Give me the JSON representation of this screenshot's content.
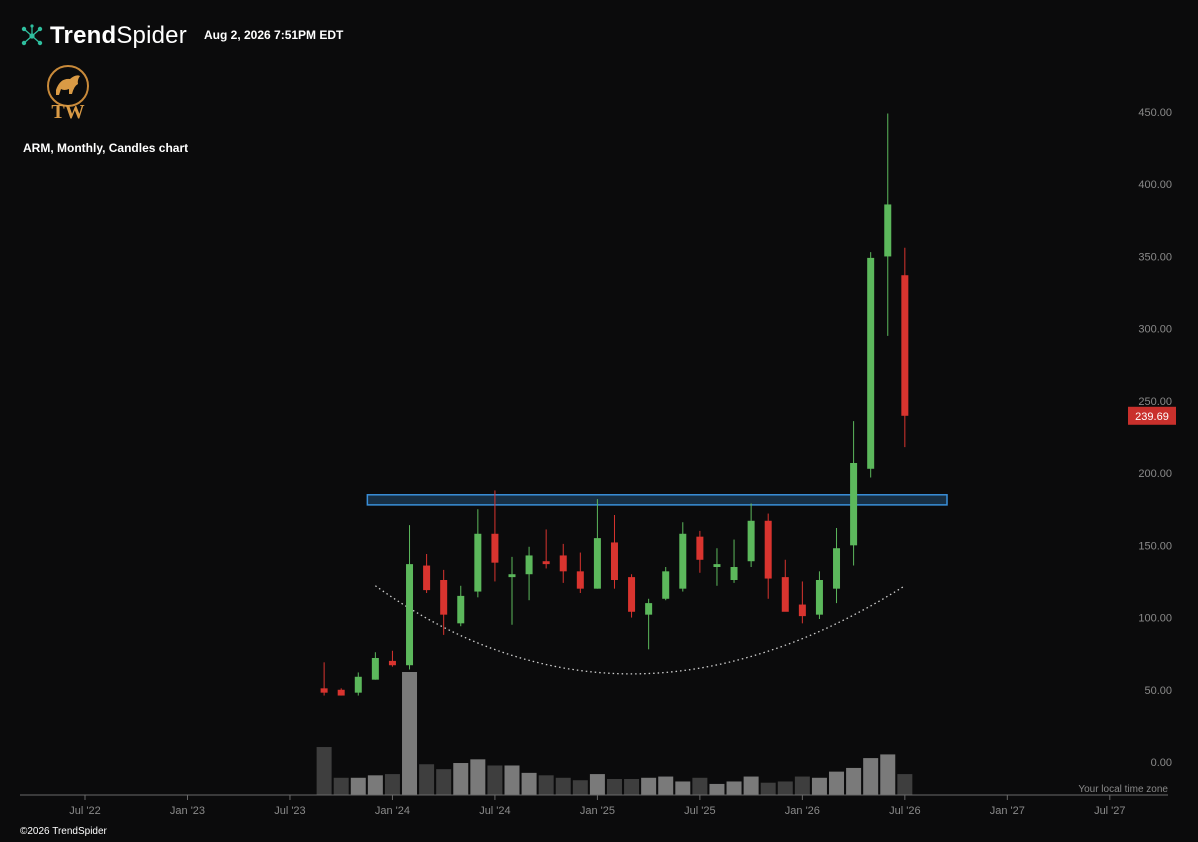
{
  "header": {
    "brand_bold": "Trend",
    "brand_light": "Spider",
    "timestamp": "Aug 2, 2026 7:51PM EDT",
    "logo_icon": "tw-bull-logo-icon",
    "brand_icon": "trendspider-nodes-icon",
    "logo_text": "TW"
  },
  "chart_title": "ARM, Monthly, Candles chart",
  "footer": {
    "copyright": "©2026 TrendSpider",
    "timezone_label": "Your local time zone"
  },
  "colors": {
    "background": "#0b0b0c",
    "up": "#5cb85c",
    "down": "#d9342f",
    "resistance": "#3a8fd9",
    "last_price_bg": "#c9302c",
    "volume_light": "#7a7a7a",
    "volume_dark": "#3e3e3e",
    "axis_text": "#8a8a8a"
  },
  "chart_data": {
    "type": "candlestick",
    "symbol": "ARM",
    "interval": "Monthly",
    "y_ticks": [
      "450.00",
      "400.00",
      "350.00",
      "300.00",
      "250.00",
      "200.00",
      "150.00",
      "100.00",
      "50.00",
      "0.00"
    ],
    "y_tick_values": [
      450,
      400,
      350,
      300,
      250,
      200,
      150,
      100,
      50,
      0
    ],
    "ylim": [
      0,
      450
    ],
    "x_ticks": [
      "Jul '22",
      "Jan '23",
      "Jul '23",
      "Jan '24",
      "Jul '24",
      "Jan '25",
      "Jul '25",
      "Jan '26",
      "Jul '26",
      "Jan '27",
      "Jul '27"
    ],
    "x_range_months": [
      "2022-07",
      "2027-07"
    ],
    "last_price": 239.69,
    "last_price_label": "239.69",
    "candles": [
      {
        "date": "2023-09",
        "open": 51.0,
        "high": 69.0,
        "low": 46.0,
        "close": 48.0
      },
      {
        "date": "2023-10",
        "open": 50.0,
        "high": 51.0,
        "low": 46.0,
        "close": 46.0
      },
      {
        "date": "2023-11",
        "open": 48.0,
        "high": 62.0,
        "low": 46.0,
        "close": 59.0
      },
      {
        "date": "2023-12",
        "open": 57.0,
        "high": 76.0,
        "low": 57.0,
        "close": 72.0
      },
      {
        "date": "2024-01",
        "open": 70.0,
        "high": 77.0,
        "low": 66.0,
        "close": 67.0
      },
      {
        "date": "2024-02",
        "open": 67.0,
        "high": 164.0,
        "low": 64.0,
        "close": 137.0
      },
      {
        "date": "2024-03",
        "open": 136.0,
        "high": 144.0,
        "low": 117.0,
        "close": 119.0
      },
      {
        "date": "2024-04",
        "open": 126.0,
        "high": 133.0,
        "low": 88.0,
        "close": 102.0
      },
      {
        "date": "2024-05",
        "open": 96.0,
        "high": 122.0,
        "low": 94.0,
        "close": 115.0
      },
      {
        "date": "2024-06",
        "open": 118.0,
        "high": 175.0,
        "low": 114.0,
        "close": 158.0
      },
      {
        "date": "2024-07",
        "open": 158.0,
        "high": 188.0,
        "low": 125.0,
        "close": 138.0
      },
      {
        "date": "2024-08",
        "open": 128.0,
        "high": 142.0,
        "low": 95.0,
        "close": 130.0
      },
      {
        "date": "2024-09",
        "open": 130.0,
        "high": 149.0,
        "low": 112.0,
        "close": 143.0
      },
      {
        "date": "2024-10",
        "open": 139.0,
        "high": 161.0,
        "low": 134.0,
        "close": 137.0
      },
      {
        "date": "2024-11",
        "open": 143.0,
        "high": 151.0,
        "low": 124.0,
        "close": 132.0
      },
      {
        "date": "2024-12",
        "open": 132.0,
        "high": 145.0,
        "low": 117.0,
        "close": 120.0
      },
      {
        "date": "2025-01",
        "open": 120.0,
        "high": 182.0,
        "low": 120.0,
        "close": 155.0
      },
      {
        "date": "2025-02",
        "open": 152.0,
        "high": 171.0,
        "low": 120.0,
        "close": 126.0
      },
      {
        "date": "2025-03",
        "open": 128.0,
        "high": 130.0,
        "low": 100.0,
        "close": 104.0
      },
      {
        "date": "2025-04",
        "open": 102.0,
        "high": 113.0,
        "low": 78.0,
        "close": 110.0
      },
      {
        "date": "2025-05",
        "open": 113.0,
        "high": 135.0,
        "low": 112.0,
        "close": 132.0
      },
      {
        "date": "2025-06",
        "open": 120.0,
        "high": 166.0,
        "low": 118.0,
        "close": 158.0
      },
      {
        "date": "2025-07",
        "open": 156.0,
        "high": 160.0,
        "low": 131.0,
        "close": 140.0
      },
      {
        "date": "2025-08",
        "open": 135.0,
        "high": 148.0,
        "low": 122.0,
        "close": 137.0
      },
      {
        "date": "2025-09",
        "open": 126.0,
        "high": 154.0,
        "low": 124.0,
        "close": 135.0
      },
      {
        "date": "2025-10",
        "open": 139.0,
        "high": 179.0,
        "low": 135.0,
        "close": 167.0
      },
      {
        "date": "2025-11",
        "open": 167.0,
        "high": 172.0,
        "low": 113.0,
        "close": 127.0
      },
      {
        "date": "2025-12",
        "open": 128.0,
        "high": 140.0,
        "low": 105.0,
        "close": 104.0
      },
      {
        "date": "2026-01",
        "open": 109.0,
        "high": 125.0,
        "low": 96.0,
        "close": 101.0
      },
      {
        "date": "2026-02",
        "open": 102.0,
        "high": 132.0,
        "low": 99.0,
        "close": 126.0
      },
      {
        "date": "2026-03",
        "open": 120.0,
        "high": 162.0,
        "low": 110.0,
        "close": 148.0
      },
      {
        "date": "2026-04",
        "open": 150.0,
        "high": 236.0,
        "low": 136.0,
        "close": 207.0
      },
      {
        "date": "2026-05",
        "open": 203.0,
        "high": 353.0,
        "low": 197.0,
        "close": 349.0
      },
      {
        "date": "2026-06",
        "open": 350.0,
        "high": 449.0,
        "low": 295.0,
        "close": 386.0
      },
      {
        "date": "2026-07",
        "open": 337.0,
        "high": 356.0,
        "low": 218.0,
        "close": 239.69
      }
    ],
    "volume_relative": [
      0.39,
      0.14,
      0.14,
      0.16,
      0.17,
      1.0,
      0.25,
      0.21,
      0.26,
      0.29,
      0.24,
      0.24,
      0.18,
      0.16,
      0.14,
      0.12,
      0.17,
      0.13,
      0.13,
      0.14,
      0.15,
      0.11,
      0.14,
      0.09,
      0.11,
      0.15,
      0.1,
      0.11,
      0.15,
      0.14,
      0.19,
      0.22,
      0.3,
      0.33,
      0.17
    ],
    "resistance_zone": {
      "from": 178.0,
      "to": 185.0,
      "start": "2023-12",
      "end": "2026-09"
    },
    "cup_curve": {
      "start": "2023-12",
      "start_value": 122.0,
      "bottom": "2025-03",
      "bottom_value": 61.0,
      "end": "2026-07",
      "end_value": 122.0
    }
  }
}
